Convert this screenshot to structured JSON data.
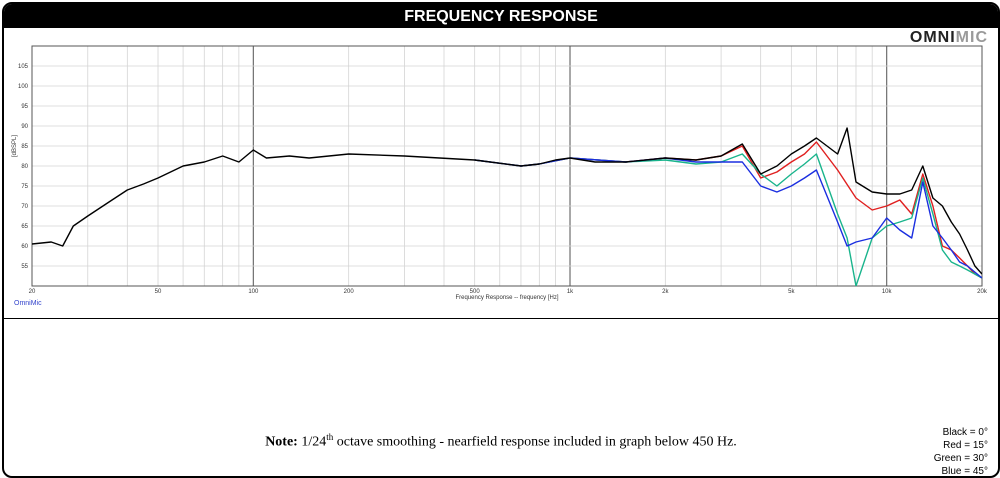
{
  "header": {
    "title": "FREQUENCY RESPONSE"
  },
  "logo": {
    "part1": "OMNI",
    "part2": "MIC"
  },
  "watermark": "OmniMic",
  "note": {
    "label": "Note:",
    "pre": "1/24",
    "sup": "th",
    "post": "octave smoothing - nearfield response included in graph below 450 Hz."
  },
  "legend": [
    {
      "label": "Black = 0°"
    },
    {
      "label": "Red = 15°"
    },
    {
      "label": "Green = 30°"
    },
    {
      "label": "Blue = 45°"
    }
  ],
  "colors": {
    "black": "#000000",
    "red": "#e02020",
    "green": "#19b48c",
    "blue": "#1a2ee0"
  },
  "chart_data": {
    "type": "line",
    "xscale": "log",
    "xlim": [
      20,
      20000
    ],
    "ylim": [
      50,
      110
    ],
    "xlabel": "Frequency Response -- frequency [Hz]",
    "ylabel": "[dBSPL]",
    "grid": true,
    "x_ticks": [
      {
        "v": 20,
        "label": "20"
      },
      {
        "v": 50,
        "label": "50"
      },
      {
        "v": 100,
        "label": "100"
      },
      {
        "v": 200,
        "label": "200"
      },
      {
        "v": 500,
        "label": "500"
      },
      {
        "v": 1000,
        "label": "1k"
      },
      {
        "v": 2000,
        "label": "2k"
      },
      {
        "v": 5000,
        "label": "5k"
      },
      {
        "v": 10000,
        "label": "10k"
      },
      {
        "v": 20000,
        "label": "20k"
      }
    ],
    "y_ticks": [
      55,
      60,
      65,
      70,
      75,
      80,
      85,
      90,
      95,
      100,
      105
    ],
    "series": [
      {
        "name": "Black",
        "color": "#000000",
        "x": [
          20,
          23,
          25,
          27,
          30,
          35,
          40,
          45,
          50,
          60,
          70,
          80,
          90,
          100,
          110,
          130,
          150,
          200,
          300,
          500,
          700,
          800,
          900,
          1000,
          1200,
          1500,
          2000,
          2500,
          3000,
          3500,
          4000,
          4500,
          5000,
          5500,
          6000,
          7000,
          7500,
          8000,
          9000,
          10000,
          11000,
          12000,
          13000,
          14000,
          15000,
          16000,
          17000,
          18000,
          19000,
          20000
        ],
        "y": [
          60.5,
          61,
          60,
          65,
          67.5,
          71,
          74,
          75.5,
          77,
          80,
          81,
          82.5,
          81,
          84,
          82,
          82.5,
          82,
          83,
          82.5,
          81.5,
          80,
          80.5,
          81.5,
          82,
          81,
          81,
          82,
          81.5,
          82.5,
          85.5,
          78,
          80,
          83,
          85,
          87,
          83,
          89.5,
          76,
          73.5,
          73,
          73,
          74,
          80,
          72,
          70,
          66,
          63,
          59,
          55,
          53
        ]
      },
      {
        "name": "Red",
        "color": "#e02020",
        "x": [
          500,
          700,
          800,
          1000,
          1500,
          2000,
          2500,
          3000,
          3500,
          4000,
          4500,
          5000,
          5500,
          6000,
          7000,
          8000,
          9000,
          10000,
          11000,
          12000,
          13000,
          14000,
          15000,
          16000,
          17000,
          18000,
          19000,
          20000
        ],
        "y": [
          81.5,
          80,
          80.5,
          82,
          81,
          82,
          81.5,
          82.5,
          85,
          77,
          78.5,
          81,
          83,
          86,
          79,
          72,
          69,
          70,
          71.5,
          68,
          78,
          70,
          60,
          59,
          57,
          55,
          53,
          52
        ]
      },
      {
        "name": "Green",
        "color": "#19b48c",
        "x": [
          500,
          700,
          800,
          1000,
          1500,
          2000,
          2500,
          3000,
          3500,
          4000,
          4500,
          5000,
          5500,
          6000,
          7000,
          7500,
          8000,
          9000,
          10000,
          11000,
          12000,
          13000,
          14000,
          15000,
          16000,
          17000,
          18000,
          20000
        ],
        "y": [
          81.5,
          80,
          80.5,
          82,
          81,
          81.5,
          80.5,
          81,
          83,
          78,
          75,
          78,
          80.5,
          83,
          68,
          62,
          50,
          62,
          65,
          66,
          67,
          77,
          68,
          59,
          56,
          55,
          54,
          52
        ]
      },
      {
        "name": "Blue",
        "color": "#1a2ee0",
        "x": [
          500,
          700,
          800,
          1000,
          1500,
          2000,
          2500,
          3000,
          3500,
          4000,
          4500,
          5000,
          5500,
          6000,
          7000,
          7500,
          8000,
          9000,
          10000,
          11000,
          12000,
          13000,
          14000,
          15000,
          16000,
          17000,
          18000,
          20000
        ],
        "y": [
          81.5,
          80,
          80.5,
          82,
          81,
          82,
          81,
          81,
          81,
          75,
          73.5,
          75,
          77,
          79,
          66,
          60,
          61,
          62,
          67,
          64,
          62,
          76,
          65,
          62,
          59,
          56,
          55,
          52
        ]
      }
    ]
  }
}
